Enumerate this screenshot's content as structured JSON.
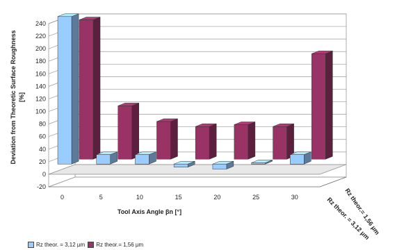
{
  "chart_data": {
    "type": "bar",
    "title": "",
    "ylabel": "Deviation from Theoretic Surface Roughness\n[%]",
    "xlabel": "Tool Axis Angle βn [°]",
    "categories": [
      "0",
      "5",
      "10",
      "15",
      "20",
      "25",
      "30"
    ],
    "y_ticks": [
      "240",
      "220",
      "200",
      "180",
      "160",
      "140",
      "120",
      "100",
      "80",
      "60",
      "40",
      "20",
      "0",
      "-20"
    ],
    "ylim": [
      -20,
      240
    ],
    "grid": true,
    "legend_position": "bottom-left",
    "series": [
      {
        "name": "Rz theor. = 3,12 µm",
        "color": "#99ccff",
        "values": [
          235,
          15,
          15,
          -5,
          -8,
          2,
          15
        ]
      },
      {
        "name": "Rz theor.= 1,56 µm",
        "color": "#993366",
        "values": [
          222,
          85,
          60,
          52,
          55,
          52,
          168
        ]
      }
    ],
    "depth_axis_labels": [
      "Rz theor.= 1,56 µm",
      "Rz theor. = 3,12 µm"
    ]
  }
}
